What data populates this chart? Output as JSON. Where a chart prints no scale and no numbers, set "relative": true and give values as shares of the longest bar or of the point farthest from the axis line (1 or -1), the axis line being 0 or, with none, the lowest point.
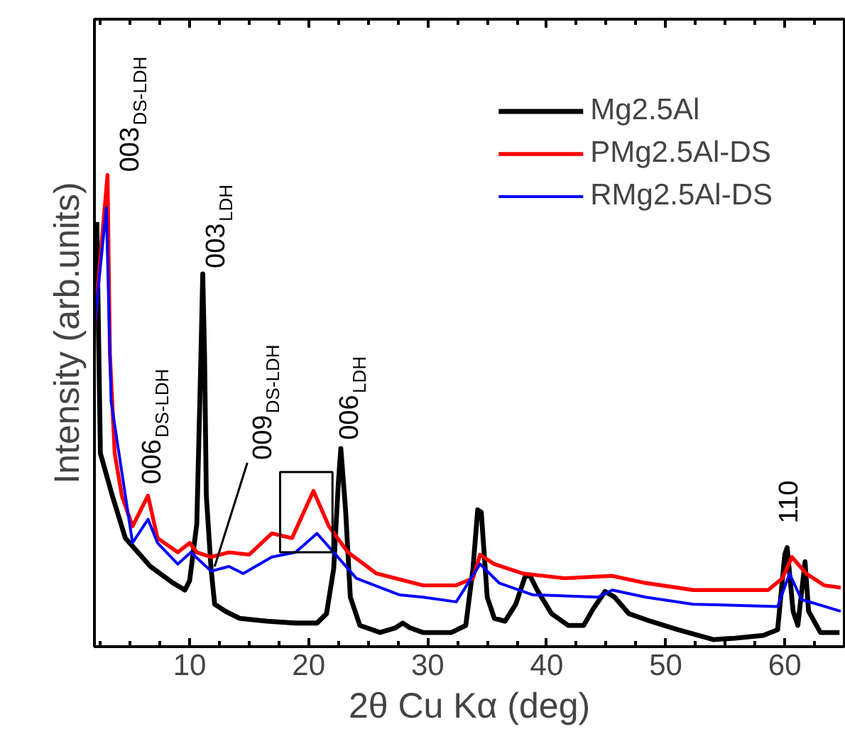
{
  "chart_data": {
    "type": "line",
    "relative": true,
    "xlabel": "2θ Cu Kα (deg)",
    "ylabel": "Intensity (arb.units)",
    "xlim": [
      2,
      65
    ],
    "xticks": [
      10,
      20,
      30,
      40,
      50,
      60
    ],
    "legend": "top right",
    "line_style": "solid",
    "marker": "none",
    "series": [
      {
        "name": "Mg2.5Al",
        "color": "#000000",
        "x": [
          2.2,
          2.5,
          3.5,
          4.6,
          6.7,
          8.6,
          9.6,
          10,
          10.6,
          10.95,
          11.1,
          11.25,
          11.4,
          11.8,
          12.1,
          13,
          14.2,
          16.5,
          18.9,
          20.7,
          21.5,
          22.1,
          22.5,
          22.7,
          23.1,
          23.5,
          24.3,
          26,
          27.3,
          27.9,
          28.5,
          29.6,
          32,
          33.2,
          33.8,
          34.2,
          34.5,
          35,
          35.6,
          36.5,
          37.4,
          38.2,
          38.6,
          39.2,
          40.4,
          41.8,
          43.1,
          43.9,
          44.9,
          45.7,
          46.9,
          48.7,
          51,
          54,
          55.8,
          58.2,
          59.4,
          60,
          60.2,
          60.7,
          61.1,
          61.7,
          62,
          63,
          64.6
        ],
        "values": [
          0.9,
          0.41,
          0.32,
          0.23,
          0.17,
          0.135,
          0.12,
          0.14,
          0.26,
          0.62,
          0.79,
          0.62,
          0.32,
          0.165,
          0.09,
          0.075,
          0.06,
          0.054,
          0.05,
          0.05,
          0.07,
          0.165,
          0.35,
          0.42,
          0.29,
          0.105,
          0.045,
          0.03,
          0.04,
          0.05,
          0.04,
          0.03,
          0.03,
          0.045,
          0.165,
          0.29,
          0.285,
          0.105,
          0.06,
          0.054,
          0.09,
          0.15,
          0.15,
          0.12,
          0.07,
          0.045,
          0.045,
          0.08,
          0.117,
          0.105,
          0.07,
          0.054,
          0.036,
          0.015,
          0.018,
          0.024,
          0.036,
          0.195,
          0.21,
          0.075,
          0.045,
          0.18,
          0.075,
          0.03,
          0.03
        ]
      },
      {
        "name": "PMg2.5Al-DS",
        "color": "#ff0000",
        "x": [
          2,
          3.1,
          3.3,
          3.7,
          4.3,
          5.2,
          6.5,
          7.3,
          9,
          10,
          10.6,
          11.8,
          13.3,
          15,
          16.9,
          18.6,
          20.4,
          21.7,
          23.3,
          25.7,
          29.6,
          32.4,
          33.8,
          34.4,
          35.6,
          38,
          41.5,
          45.5,
          48.3,
          52.3,
          58.6,
          59.8,
          60.6,
          61.8,
          63.3,
          64.7
        ],
        "values": [
          0.68,
          1.0,
          0.62,
          0.41,
          0.32,
          0.255,
          0.32,
          0.23,
          0.2,
          0.22,
          0.2,
          0.19,
          0.2,
          0.195,
          0.24,
          0.23,
          0.33,
          0.255,
          0.2,
          0.155,
          0.13,
          0.13,
          0.145,
          0.195,
          0.175,
          0.155,
          0.145,
          0.15,
          0.135,
          0.12,
          0.12,
          0.145,
          0.19,
          0.155,
          0.13,
          0.125
        ]
      },
      {
        "name": "RMg2.5Al-DS",
        "color": "#0000ff",
        "x": [
          2,
          3,
          3.4,
          4.3,
          5.2,
          6.5,
          7.3,
          9,
          10.1,
          11.8,
          13.3,
          14.5,
          16.9,
          18.9,
          20.7,
          22.1,
          24,
          27.6,
          29.6,
          32.4,
          34.4,
          36,
          38.8,
          44.3,
          45.5,
          48.3,
          52.3,
          59.4,
          60.4,
          61.4,
          64.7
        ],
        "values": [
          0.68,
          0.93,
          0.52,
          0.37,
          0.22,
          0.27,
          0.22,
          0.175,
          0.2,
          0.16,
          0.17,
          0.155,
          0.19,
          0.2,
          0.24,
          0.2,
          0.145,
          0.11,
          0.105,
          0.095,
          0.175,
          0.135,
          0.11,
          0.105,
          0.12,
          0.105,
          0.09,
          0.085,
          0.155,
          0.1,
          0.075
        ]
      }
    ],
    "annotations": [
      {
        "text": "003$_{DS-LDH}$",
        "x": 3.1,
        "y": 1.0
      },
      {
        "text": "003$_{LDH}$",
        "x": 11.1,
        "y": 0.79
      },
      {
        "text": "006$_{DS-LDH}$",
        "x": 6.5,
        "y": 0.32
      },
      {
        "text": "009$_{DS-LDH}$",
        "x": 12.1,
        "y": 0.17
      },
      {
        "text": "006$_{LDH}$",
        "x": 22.7,
        "y": 0.42
      },
      {
        "text": "110",
        "x": 60.2,
        "y": 0.21
      }
    ]
  }
}
